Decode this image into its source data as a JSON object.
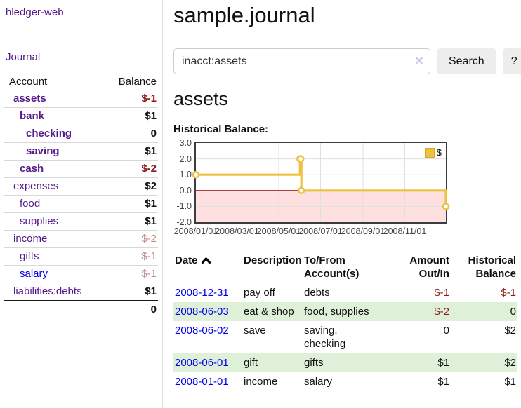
{
  "app": {
    "title": "hledger-web"
  },
  "colors": {
    "link_visited_purple": "#551a8b",
    "link_blue": "#0000ee",
    "negative_strong": "#8b1a1a",
    "negative_dim": "#c28b8b",
    "chart_series_gold": "#edc240",
    "chart_negative_fill": "#fbdcdc",
    "chart_zero_line": "#8b0000",
    "row_stripe_green": "#dff0d8"
  },
  "sidebar": {
    "journal_link": "Journal",
    "accounts_header": {
      "account": "Account",
      "balance": "Balance"
    },
    "accounts": [
      {
        "name": "assets",
        "balance": "$-1",
        "indent_class": "lvl1",
        "name_class": "bold",
        "balance_class": "bold neg"
      },
      {
        "name": "bank",
        "balance": "$1",
        "indent_class": "lvl2",
        "name_class": "bold",
        "balance_class": "bold"
      },
      {
        "name": "checking",
        "balance": "0",
        "indent_class": "lvl3",
        "name_class": "bold",
        "balance_class": "bold"
      },
      {
        "name": "saving",
        "balance": "$1",
        "indent_class": "lvl3",
        "name_class": "bold",
        "balance_class": "bold"
      },
      {
        "name": "cash",
        "balance": "$-2",
        "indent_class": "lvl2",
        "name_class": "bold",
        "balance_class": "bold neg"
      },
      {
        "name": "expenses",
        "balance": "$2",
        "indent_class": "lvl1",
        "name_class": "",
        "balance_class": "bold"
      },
      {
        "name": "food",
        "balance": "$1",
        "indent_class": "lvl2",
        "name_class": "",
        "balance_class": "bold"
      },
      {
        "name": "supplies",
        "balance": "$1",
        "indent_class": "lvl2",
        "name_class": "",
        "balance_class": "bold"
      },
      {
        "name": "income",
        "balance": "$-2",
        "indent_class": "lvl1",
        "name_class": "",
        "balance_class": "negdim"
      },
      {
        "name": "gifts",
        "balance": "$-1",
        "indent_class": "lvl2",
        "name_class": "",
        "balance_class": "negdim"
      },
      {
        "name": "salary",
        "balance": "$-1",
        "indent_class": "lvl2",
        "name_class": "blue",
        "balance_class": "negdim"
      },
      {
        "name": "liabilities:debts",
        "balance": "$1",
        "indent_class": "lvl1",
        "name_class": "",
        "balance_class": "bold"
      }
    ],
    "total": "0"
  },
  "main": {
    "title": "sample.journal",
    "search": {
      "value": "inacct:assets",
      "clear_icon": "×",
      "button_label": "Search",
      "help_label": "?"
    },
    "account_heading": "assets"
  },
  "chart_data": {
    "type": "line",
    "step": true,
    "title": "Historical Balance:",
    "legend": {
      "label": "$",
      "position": "top-right"
    },
    "x_range": [
      "2008-01-01",
      "2008-12-31"
    ],
    "ylim": [
      -2.0,
      3.0
    ],
    "yticks": [
      3.0,
      2.0,
      1.0,
      0.0,
      -1.0,
      -2.0
    ],
    "xticks": [
      "2008/01/01",
      "2008/03/01",
      "2008/05/01",
      "2008/07/01",
      "2008/09/01",
      "2008/11/01"
    ],
    "grid": true,
    "series": [
      {
        "name": "$",
        "color": "#edc240",
        "points": [
          {
            "date": "2008-01-01",
            "value": 1
          },
          {
            "date": "2008-06-01",
            "value": 2
          },
          {
            "date": "2008-06-02",
            "value": 2
          },
          {
            "date": "2008-06-03",
            "value": 0
          },
          {
            "date": "2008-12-31",
            "value": -1
          }
        ]
      }
    ]
  },
  "register": {
    "headers": {
      "date": "Date",
      "description": "Description",
      "accounts": "To/From\nAccount(s)",
      "amount": "Amount\nOut/In",
      "balance": "Historical\nBalance"
    },
    "rows": [
      {
        "date": "2008-12-31",
        "description": "pay off",
        "accounts": "debts",
        "amount": "$-1",
        "amount_class": "neg",
        "balance": "$-1",
        "balance_class": "neg"
      },
      {
        "date": "2008-06-03",
        "description": "eat & shop",
        "accounts": "food, supplies",
        "amount": "$-2",
        "amount_class": "neg",
        "balance": "0",
        "balance_class": ""
      },
      {
        "date": "2008-06-02",
        "description": "save",
        "accounts": "saving,\nchecking",
        "amount": "0",
        "amount_class": "",
        "balance": "$2",
        "balance_class": ""
      },
      {
        "date": "2008-06-01",
        "description": "gift",
        "accounts": "gifts",
        "amount": "$1",
        "amount_class": "",
        "balance": "$2",
        "balance_class": ""
      },
      {
        "date": "2008-01-01",
        "description": "income",
        "accounts": "salary",
        "amount": "$1",
        "amount_class": "",
        "balance": "$1",
        "balance_class": ""
      }
    ]
  }
}
